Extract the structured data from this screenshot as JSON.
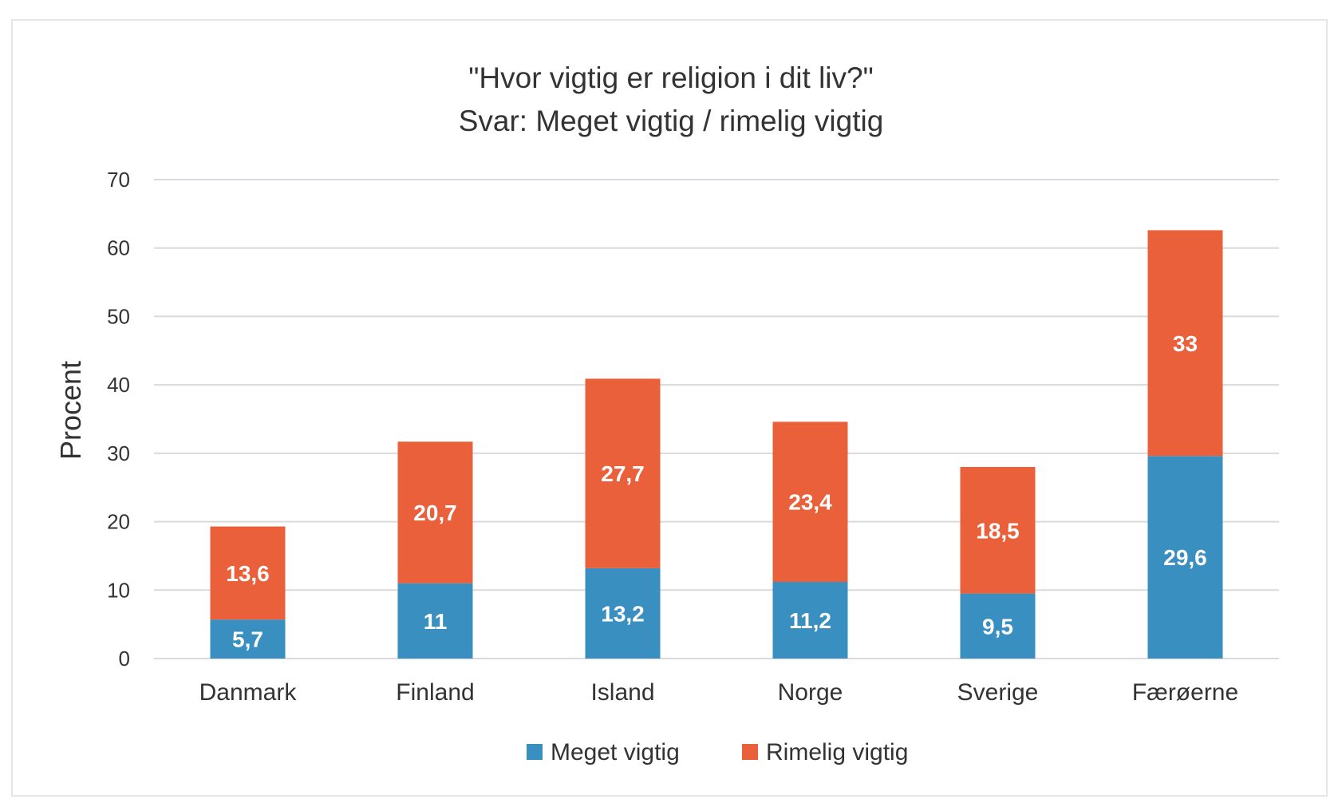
{
  "chart_data": {
    "type": "bar",
    "stacked": true,
    "title": "\"Hvor vigtig er religion i dit liv?\"",
    "subtitle": "Svar: Meget vigtig / rimelig vigtig",
    "xlabel": "",
    "ylabel": "Procent",
    "ylim": [
      0,
      70
    ],
    "yticks": [
      0,
      10,
      20,
      30,
      40,
      50,
      60,
      70
    ],
    "grid": true,
    "legend_position": "bottom",
    "categories": [
      "Danmark",
      "Finland",
      "Island",
      "Norge",
      "Sverige",
      "Færøerne"
    ],
    "series": [
      {
        "name": "Meget vigtig",
        "color": "#3a8fc1",
        "values": [
          5.7,
          11,
          13.2,
          11.2,
          9.5,
          29.6
        ],
        "labels": [
          "5,7",
          "11",
          "13,2",
          "11,2",
          "9,5",
          "29,6"
        ]
      },
      {
        "name": "Rimelig vigtig",
        "color": "#e9603a",
        "values": [
          13.6,
          20.7,
          27.7,
          23.4,
          18.5,
          33
        ],
        "labels": [
          "13,6",
          "20,7",
          "27,7",
          "23,4",
          "18,5",
          "33"
        ]
      }
    ]
  }
}
